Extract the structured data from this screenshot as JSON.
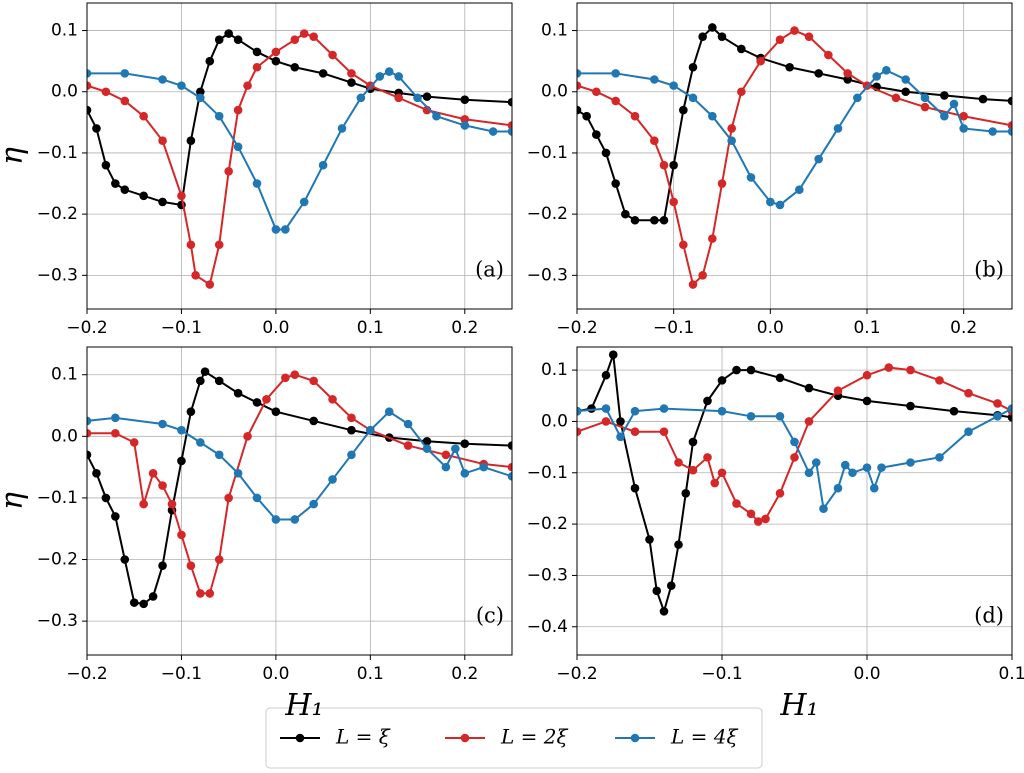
{
  "chart_data": [
    {
      "type": "line",
      "annotation": "(a)",
      "ylabel": "η",
      "grid": true,
      "xlim": [
        -0.2,
        0.25
      ],
      "xticks": [
        {
          "value": -0.2,
          "label": "−0.2"
        },
        {
          "value": -0.1,
          "label": "−0.1"
        },
        {
          "value": 0,
          "label": "0.0"
        },
        0.1,
        0.2
      ],
      "ylim": [
        -0.355,
        0.145
      ],
      "yticks": [
        {
          "value": -0.3,
          "label": "−0.3"
        },
        {
          "value": -0.2,
          "label": "−0.2"
        },
        {
          "value": -0.1,
          "label": "−0.1"
        },
        {
          "value": 0,
          "label": "0.0"
        },
        0.1
      ],
      "series": [
        {
          "name": "L = ξ",
          "color": "#000000",
          "x": [
            -0.2,
            -0.19,
            -0.18,
            -0.17,
            -0.16,
            -0.14,
            -0.12,
            -0.1,
            -0.09,
            -0.08,
            -0.07,
            -0.06,
            -0.05,
            -0.04,
            -0.02,
            0,
            0.02,
            0.05,
            0.08,
            0.1,
            0.13,
            0.16,
            0.2,
            0.25
          ],
          "values": [
            -0.03,
            -0.06,
            -0.12,
            -0.15,
            -0.16,
            -0.17,
            -0.18,
            -0.185,
            -0.08,
            0.0,
            0.05,
            0.085,
            0.095,
            0.085,
            0.065,
            0.05,
            0.04,
            0.03,
            0.015,
            0.005,
            -0.002,
            -0.008,
            -0.013,
            -0.017
          ]
        },
        {
          "name": "L = 2ξ",
          "color": "#d62728",
          "x": [
            -0.2,
            -0.18,
            -0.16,
            -0.14,
            -0.12,
            -0.1,
            -0.09,
            -0.085,
            -0.07,
            -0.06,
            -0.05,
            -0.04,
            -0.03,
            -0.02,
            0,
            0.02,
            0.03,
            0.04,
            0.06,
            0.08,
            0.1,
            0.13,
            0.16,
            0.2,
            0.25
          ],
          "values": [
            0.01,
            0.0,
            -0.015,
            -0.04,
            -0.08,
            -0.17,
            -0.25,
            -0.3,
            -0.315,
            -0.25,
            -0.13,
            -0.03,
            0.01,
            0.04,
            0.065,
            0.085,
            0.095,
            0.09,
            0.06,
            0.03,
            0.01,
            -0.01,
            -0.03,
            -0.045,
            -0.055
          ]
        },
        {
          "name": "L = 4ξ",
          "color": "#1f77b4",
          "x": [
            -0.2,
            -0.16,
            -0.12,
            -0.1,
            -0.08,
            -0.06,
            -0.04,
            -0.02,
            0,
            0.01,
            0.03,
            0.05,
            0.07,
            0.09,
            0.11,
            0.12,
            0.13,
            0.15,
            0.17,
            0.2,
            0.23,
            0.25
          ],
          "values": [
            0.03,
            0.03,
            0.02,
            0.01,
            -0.01,
            -0.04,
            -0.09,
            -0.15,
            -0.225,
            -0.225,
            -0.18,
            -0.12,
            -0.06,
            -0.01,
            0.025,
            0.033,
            0.025,
            -0.01,
            -0.04,
            -0.055,
            -0.065,
            -0.065
          ]
        }
      ]
    },
    {
      "type": "line",
      "annotation": "(b)",
      "grid": true,
      "xlim": [
        -0.2,
        0.25
      ],
      "xticks": [
        {
          "value": -0.2,
          "label": "−0.2"
        },
        {
          "value": -0.1,
          "label": "−0.1"
        },
        {
          "value": 0,
          "label": "0.0"
        },
        0.1,
        0.2
      ],
      "ylim": [
        -0.355,
        0.145
      ],
      "yticks": [
        {
          "value": -0.3,
          "label": "−0.3"
        },
        {
          "value": -0.2,
          "label": "−0.2"
        },
        {
          "value": -0.1,
          "label": "−0.1"
        },
        {
          "value": 0,
          "label": "0.0"
        },
        0.1
      ],
      "series": [
        {
          "name": "L = ξ",
          "color": "#000000",
          "x": [
            -0.2,
            -0.19,
            -0.18,
            -0.17,
            -0.16,
            -0.15,
            -0.14,
            -0.12,
            -0.11,
            -0.1,
            -0.09,
            -0.08,
            -0.07,
            -0.06,
            -0.05,
            -0.03,
            -0.01,
            0.02,
            0.05,
            0.08,
            0.11,
            0.14,
            0.18,
            0.22,
            0.25
          ],
          "values": [
            -0.03,
            -0.04,
            -0.07,
            -0.1,
            -0.15,
            -0.2,
            -0.21,
            -0.21,
            -0.21,
            -0.12,
            -0.03,
            0.04,
            0.09,
            0.105,
            0.09,
            0.07,
            0.055,
            0.04,
            0.03,
            0.02,
            0.008,
            0.0,
            -0.006,
            -0.012,
            -0.015
          ]
        },
        {
          "name": "L = 2ξ",
          "color": "#d62728",
          "x": [
            -0.2,
            -0.18,
            -0.16,
            -0.14,
            -0.12,
            -0.11,
            -0.1,
            -0.09,
            -0.08,
            -0.07,
            -0.06,
            -0.05,
            -0.04,
            -0.03,
            -0.01,
            0.01,
            0.025,
            0.04,
            0.06,
            0.08,
            0.1,
            0.13,
            0.16,
            0.2,
            0.25
          ],
          "values": [
            0.01,
            0.0,
            -0.015,
            -0.04,
            -0.08,
            -0.12,
            -0.18,
            -0.25,
            -0.315,
            -0.3,
            -0.24,
            -0.15,
            -0.06,
            0.0,
            0.05,
            0.085,
            0.1,
            0.09,
            0.06,
            0.03,
            0.01,
            -0.01,
            -0.025,
            -0.04,
            -0.055
          ]
        },
        {
          "name": "L = 4ξ",
          "color": "#1f77b4",
          "x": [
            -0.2,
            -0.16,
            -0.12,
            -0.1,
            -0.08,
            -0.06,
            -0.04,
            -0.02,
            0,
            0.01,
            0.03,
            0.05,
            0.07,
            0.09,
            0.11,
            0.12,
            0.14,
            0.16,
            0.18,
            0.19,
            0.2,
            0.23,
            0.25
          ],
          "values": [
            0.03,
            0.03,
            0.02,
            0.01,
            -0.01,
            -0.04,
            -0.08,
            -0.14,
            -0.18,
            -0.185,
            -0.16,
            -0.11,
            -0.06,
            -0.01,
            0.025,
            0.035,
            0.02,
            -0.01,
            -0.04,
            -0.02,
            -0.06,
            -0.065,
            -0.065
          ]
        }
      ]
    },
    {
      "type": "line",
      "annotation": "(c)",
      "ylabel": "η",
      "xlabel": "H₁",
      "grid": true,
      "xlim": [
        -0.2,
        0.25
      ],
      "xticks": [
        {
          "value": -0.2,
          "label": "−0.2"
        },
        {
          "value": -0.1,
          "label": "−0.1"
        },
        {
          "value": 0,
          "label": "0.0"
        },
        0.1,
        0.2
      ],
      "ylim": [
        -0.355,
        0.145
      ],
      "yticks": [
        {
          "value": -0.3,
          "label": "−0.3"
        },
        {
          "value": -0.2,
          "label": "−0.2"
        },
        {
          "value": -0.1,
          "label": "−0.1"
        },
        {
          "value": 0,
          "label": "0.0"
        },
        0.1
      ],
      "series": [
        {
          "name": "L = ξ",
          "color": "#000000",
          "x": [
            -0.2,
            -0.19,
            -0.18,
            -0.17,
            -0.16,
            -0.15,
            -0.14,
            -0.13,
            -0.12,
            -0.11,
            -0.1,
            -0.09,
            -0.08,
            -0.075,
            -0.06,
            -0.04,
            -0.02,
            0,
            0.04,
            0.08,
            0.12,
            0.16,
            0.2,
            0.25
          ],
          "values": [
            -0.03,
            -0.06,
            -0.1,
            -0.13,
            -0.2,
            -0.27,
            -0.272,
            -0.26,
            -0.21,
            -0.12,
            -0.04,
            0.04,
            0.09,
            0.105,
            0.09,
            0.07,
            0.055,
            0.04,
            0.025,
            0.01,
            -0.002,
            -0.008,
            -0.012,
            -0.015
          ]
        },
        {
          "name": "L = 2ξ",
          "color": "#d62728",
          "x": [
            -0.2,
            -0.17,
            -0.15,
            -0.14,
            -0.13,
            -0.12,
            -0.11,
            -0.1,
            -0.09,
            -0.08,
            -0.07,
            -0.06,
            -0.05,
            -0.03,
            -0.01,
            0.01,
            0.02,
            0.04,
            0.06,
            0.08,
            0.1,
            0.14,
            0.18,
            0.22,
            0.25
          ],
          "values": [
            0.005,
            0.005,
            -0.01,
            -0.11,
            -0.06,
            -0.08,
            -0.11,
            -0.16,
            -0.21,
            -0.255,
            -0.255,
            -0.2,
            -0.1,
            0.0,
            0.06,
            0.095,
            0.1,
            0.09,
            0.06,
            0.03,
            0.01,
            -0.015,
            -0.03,
            -0.045,
            -0.05
          ]
        },
        {
          "name": "L = 4ξ",
          "color": "#1f77b4",
          "x": [
            -0.2,
            -0.17,
            -0.12,
            -0.1,
            -0.08,
            -0.06,
            -0.04,
            -0.02,
            0,
            0.02,
            0.04,
            0.06,
            0.08,
            0.1,
            0.12,
            0.14,
            0.16,
            0.18,
            0.19,
            0.2,
            0.22,
            0.25
          ],
          "values": [
            0.025,
            0.03,
            0.02,
            0.01,
            -0.01,
            -0.03,
            -0.06,
            -0.1,
            -0.135,
            -0.135,
            -0.11,
            -0.07,
            -0.03,
            0.01,
            0.04,
            0.02,
            -0.02,
            -0.05,
            -0.02,
            -0.06,
            -0.05,
            -0.065
          ]
        }
      ]
    },
    {
      "type": "line",
      "annotation": "(d)",
      "xlabel": "H₁",
      "grid": true,
      "xlim": [
        -0.2,
        0.1
      ],
      "xticks": [
        {
          "value": -0.2,
          "label": "−0.2"
        },
        {
          "value": -0.1,
          "label": "−0.1"
        },
        {
          "value": 0,
          "label": "0.0"
        },
        0.1
      ],
      "ylim": [
        -0.455,
        0.145
      ],
      "yticks": [
        {
          "value": -0.4,
          "label": "−0.4"
        },
        {
          "value": -0.3,
          "label": "−0.3"
        },
        {
          "value": -0.2,
          "label": "−0.2"
        },
        {
          "value": -0.1,
          "label": "−0.1"
        },
        {
          "value": 0,
          "label": "0.0"
        },
        0.1
      ],
      "series": [
        {
          "name": "L = ξ",
          "color": "#000000",
          "x": [
            -0.2,
            -0.19,
            -0.18,
            -0.175,
            -0.17,
            -0.16,
            -0.15,
            -0.145,
            -0.14,
            -0.135,
            -0.13,
            -0.125,
            -0.12,
            -0.11,
            -0.1,
            -0.09,
            -0.08,
            -0.06,
            -0.04,
            -0.02,
            0,
            0.03,
            0.06,
            0.09,
            0.1
          ],
          "values": [
            0.02,
            0.025,
            0.09,
            0.13,
            0.0,
            -0.13,
            -0.23,
            -0.33,
            -0.37,
            -0.32,
            -0.24,
            -0.14,
            -0.04,
            0.04,
            0.08,
            0.1,
            0.1,
            0.085,
            0.065,
            0.05,
            0.04,
            0.03,
            0.02,
            0.012,
            0.008
          ]
        },
        {
          "name": "L = 2ξ",
          "color": "#d62728",
          "x": [
            -0.2,
            -0.18,
            -0.16,
            -0.14,
            -0.13,
            -0.12,
            -0.11,
            -0.105,
            -0.1,
            -0.09,
            -0.08,
            -0.075,
            -0.07,
            -0.06,
            -0.05,
            -0.04,
            -0.02,
            0,
            0.015,
            0.03,
            0.05,
            0.07,
            0.09,
            0.1
          ],
          "values": [
            -0.02,
            0.0,
            -0.02,
            -0.02,
            -0.08,
            -0.095,
            -0.07,
            -0.12,
            -0.1,
            -0.16,
            -0.18,
            -0.195,
            -0.19,
            -0.14,
            -0.07,
            0.0,
            0.06,
            0.09,
            0.105,
            0.1,
            0.08,
            0.055,
            0.035,
            0.02
          ]
        },
        {
          "name": "L = 4ξ",
          "color": "#1f77b4",
          "x": [
            -0.2,
            -0.18,
            -0.17,
            -0.16,
            -0.14,
            -0.1,
            -0.08,
            -0.06,
            -0.05,
            -0.04,
            -0.035,
            -0.03,
            -0.02,
            -0.015,
            -0.01,
            0,
            0.005,
            0.01,
            0.03,
            0.05,
            0.07,
            0.09,
            0.1
          ],
          "values": [
            0.02,
            0.025,
            -0.03,
            0.02,
            0.025,
            0.02,
            0.01,
            0.01,
            -0.04,
            -0.1,
            -0.08,
            -0.17,
            -0.13,
            -0.085,
            -0.1,
            -0.09,
            -0.13,
            -0.09,
            -0.08,
            -0.07,
            -0.02,
            0.01,
            0.025
          ]
        }
      ]
    }
  ]
}
